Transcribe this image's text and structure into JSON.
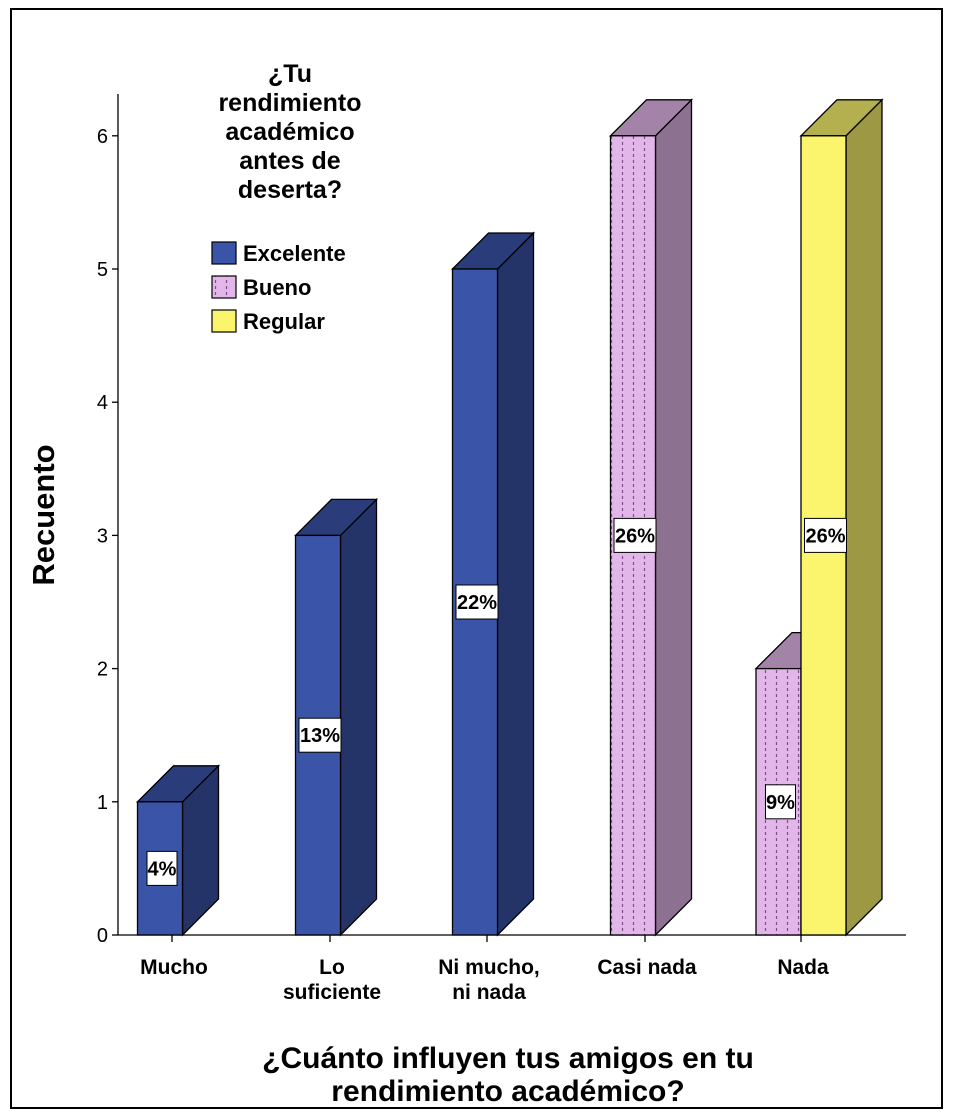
{
  "chart_data": {
    "type": "bar",
    "title": "",
    "xlabel": "¿Cuánto influyen tus amigos en tu rendimiento académico?",
    "xlabel_lines": [
      "¿Cuánto influyen tus amigos en tu",
      "rendimiento académico?"
    ],
    "ylabel": "Recuento",
    "ylim": [
      0,
      6
    ],
    "yticks": [
      0,
      1,
      2,
      3,
      4,
      5,
      6
    ],
    "categories": [
      {
        "label": "Mucho",
        "lines": [
          "Mucho"
        ]
      },
      {
        "label": "Lo suficiente",
        "lines": [
          "Lo",
          "suficiente"
        ]
      },
      {
        "label": "Ni mucho, ni nada",
        "lines": [
          "Ni mucho,",
          "ni nada"
        ]
      },
      {
        "label": "Casi nada",
        "lines": [
          "Casi nada"
        ]
      },
      {
        "label": "Nada",
        "lines": [
          "Nada"
        ]
      }
    ],
    "legend": {
      "title": "¿Tu rendimiento académico antes de deserta?",
      "title_lines": [
        "¿Tu",
        "rendimiento",
        "académico",
        "antes de",
        "deserta?"
      ],
      "placement": "top-left"
    },
    "series": [
      {
        "name": "Excelente",
        "color": "#3a54a8",
        "pattern": "solid",
        "values": [
          1,
          3,
          5,
          null,
          null
        ],
        "labels": [
          "4%",
          "13%",
          "22%",
          "",
          ""
        ]
      },
      {
        "name": "Bueno",
        "color": "#e3b6ea",
        "pattern": "dotted",
        "values": [
          null,
          null,
          null,
          6,
          2
        ],
        "labels": [
          "",
          "",
          "",
          "26%",
          "9%"
        ]
      },
      {
        "name": "Regular",
        "color": "#fbf56e",
        "pattern": "solid",
        "values": [
          null,
          null,
          null,
          null,
          6
        ],
        "labels": [
          "",
          "",
          "",
          "",
          "26%"
        ]
      }
    ],
    "grid": false
  }
}
